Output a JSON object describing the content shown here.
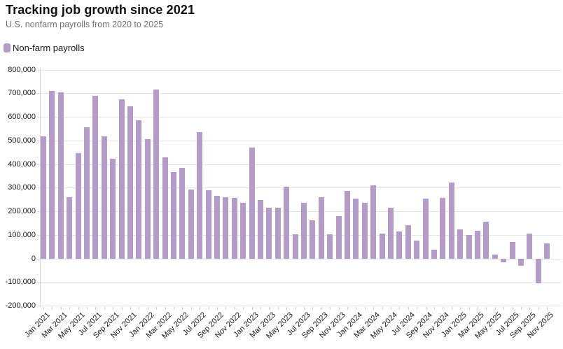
{
  "header": {
    "title": "Tracking job growth since 2021",
    "subtitle": "U.S. nonfarm payrolls from 2020 to 2025"
  },
  "legend": {
    "label": "Non-farm payrolls",
    "swatch_color": "#b59bc7"
  },
  "colors": {
    "bar": "#b59bc7",
    "gridline": "#e4e4e4",
    "axis": "#d6d6d6",
    "axis_text": "#1a1a1a",
    "title_text": "#111111",
    "subtitle_text": "#6f6f6f"
  },
  "chart_data": {
    "type": "bar",
    "title": "Tracking job growth since 2021",
    "subtitle": "U.S. nonfarm payrolls from 2020 to 2025",
    "series_name": "Non-farm payrolls",
    "bar_color": "#b59bc7",
    "grid": "horizontal",
    "legend_position": "top-left",
    "ylim": [
      -200000,
      800000
    ],
    "ytick_interval": 100000,
    "ytick_labels": [
      "800,000",
      "700,000",
      "600,000",
      "500,000",
      "400,000",
      "300,000",
      "200,000",
      "100,000",
      "0",
      "-100,000",
      "-200,000"
    ],
    "xlabel": "",
    "ylabel": "",
    "x_label_every": 2,
    "x_label_rotation": -45,
    "x": [
      "Jan 2021",
      "Feb 2021",
      "Mar 2021",
      "Apr 2021",
      "May 2021",
      "Jun 2021",
      "Jul 2021",
      "Aug 2021",
      "Sep 2021",
      "Oct 2021",
      "Nov 2021",
      "Dec 2021",
      "Jan 2022",
      "Feb 2022",
      "Mar 2022",
      "Apr 2022",
      "May 2022",
      "Jun 2022",
      "Jul 2022",
      "Aug 2022",
      "Sep 2022",
      "Oct 2022",
      "Nov 2022",
      "Dec 2022",
      "Jan 2023",
      "Feb 2023",
      "Mar 2023",
      "Apr 2023",
      "May 2023",
      "Jun 2023",
      "Jul 2023",
      "Aug 2023",
      "Sep 2023",
      "Oct 2023",
      "Nov 2023",
      "Dec 2023",
      "Jan 2024",
      "Feb 2024",
      "Mar 2024",
      "Apr 2024",
      "May 2024",
      "Jun 2024",
      "Jul 2024",
      "Aug 2024",
      "Sep 2024",
      "Oct 2024",
      "Nov 2024",
      "Dec 2024",
      "Jan 2025",
      "Feb 2025",
      "Mar 2025",
      "Apr 2025",
      "May 2025",
      "Jun 2025",
      "Jul 2025",
      "Aug 2025",
      "Sep 2025",
      "Oct 2025",
      "Nov 2025"
    ],
    "values": [
      520000,
      710000,
      704000,
      262000,
      447000,
      556000,
      690000,
      518000,
      424000,
      677000,
      646000,
      588000,
      506000,
      716000,
      430000,
      368000,
      385000,
      292000,
      537000,
      291000,
      267000,
      261000,
      257000,
      238000,
      472000,
      248000,
      217000,
      217000,
      306000,
      103000,
      236000,
      164000,
      260000,
      103000,
      182000,
      288000,
      255000,
      236000,
      310000,
      107000,
      215000,
      115000,
      143000,
      78000,
      254000,
      40000,
      259000,
      323000,
      125000,
      100000,
      118000,
      156000,
      19000,
      -14000,
      71000,
      -29000,
      107000,
      -105000,
      64000
    ]
  }
}
